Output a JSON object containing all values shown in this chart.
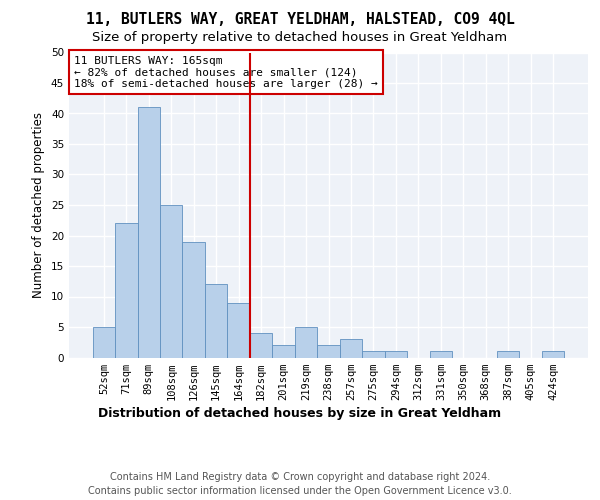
{
  "title": "11, BUTLERS WAY, GREAT YELDHAM, HALSTEAD, CO9 4QL",
  "subtitle": "Size of property relative to detached houses in Great Yeldham",
  "xlabel": "Distribution of detached houses by size in Great Yeldham",
  "ylabel": "Number of detached properties",
  "categories": [
    "52sqm",
    "71sqm",
    "89sqm",
    "108sqm",
    "126sqm",
    "145sqm",
    "164sqm",
    "182sqm",
    "201sqm",
    "219sqm",
    "238sqm",
    "257sqm",
    "275sqm",
    "294sqm",
    "312sqm",
    "331sqm",
    "350sqm",
    "368sqm",
    "387sqm",
    "405sqm",
    "424sqm"
  ],
  "values": [
    5,
    22,
    41,
    25,
    19,
    12,
    9,
    4,
    2,
    5,
    2,
    3,
    1,
    1,
    0,
    1,
    0,
    0,
    1,
    0,
    1
  ],
  "bar_color": "#b8d0ea",
  "bar_edge_color": "#6090c0",
  "vline_index": 6.5,
  "vline_color": "#cc0000",
  "annotation_text": "11 BUTLERS WAY: 165sqm\n← 82% of detached houses are smaller (124)\n18% of semi-detached houses are larger (28) →",
  "annotation_box_color": "#cc0000",
  "ylim": [
    0,
    50
  ],
  "yticks": [
    0,
    5,
    10,
    15,
    20,
    25,
    30,
    35,
    40,
    45,
    50
  ],
  "background_color": "#eef2f8",
  "grid_color": "#ffffff",
  "footer_line1": "Contains HM Land Registry data © Crown copyright and database right 2024.",
  "footer_line2": "Contains public sector information licensed under the Open Government Licence v3.0.",
  "title_fontsize": 10.5,
  "subtitle_fontsize": 9.5,
  "xlabel_fontsize": 9,
  "ylabel_fontsize": 8.5,
  "tick_fontsize": 7.5,
  "annot_fontsize": 8,
  "footer_fontsize": 7
}
